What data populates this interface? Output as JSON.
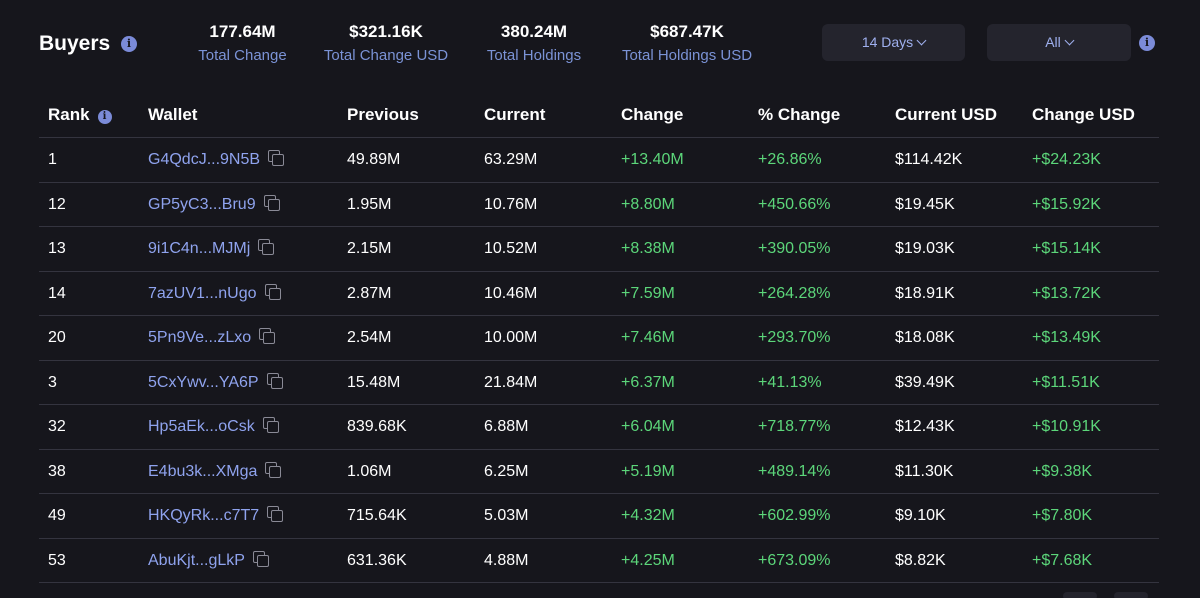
{
  "header": {
    "title": "Buyers",
    "stats": [
      {
        "value": "177.64M",
        "label": "Total Change"
      },
      {
        "value": "$321.16K",
        "label": "Total Change USD"
      },
      {
        "value": "380.24M",
        "label": "Total Holdings"
      },
      {
        "value": "$687.47K",
        "label": "Total Holdings USD"
      }
    ],
    "filters": {
      "days": "14 Days",
      "scope": "All"
    },
    "info_glyph": "i"
  },
  "table": {
    "columns": [
      "Rank",
      "Wallet",
      "Previous",
      "Current",
      "Change",
      "% Change",
      "Current USD",
      "Change USD"
    ],
    "rows": [
      {
        "rank": "1",
        "wallet": "G4QdcJ...9N5B",
        "previous": "49.89M",
        "current": "63.29M",
        "change": "+13.40M",
        "pct_change": "+26.86%",
        "current_usd": "$114.42K",
        "change_usd": "+$24.23K"
      },
      {
        "rank": "12",
        "wallet": "GP5yC3...Bru9",
        "previous": "1.95M",
        "current": "10.76M",
        "change": "+8.80M",
        "pct_change": "+450.66%",
        "current_usd": "$19.45K",
        "change_usd": "+$15.92K"
      },
      {
        "rank": "13",
        "wallet": "9i1C4n...MJMj",
        "previous": "2.15M",
        "current": "10.52M",
        "change": "+8.38M",
        "pct_change": "+390.05%",
        "current_usd": "$19.03K",
        "change_usd": "+$15.14K"
      },
      {
        "rank": "14",
        "wallet": "7azUV1...nUgo",
        "previous": "2.87M",
        "current": "10.46M",
        "change": "+7.59M",
        "pct_change": "+264.28%",
        "current_usd": "$18.91K",
        "change_usd": "+$13.72K"
      },
      {
        "rank": "20",
        "wallet": "5Pn9Ve...zLxo",
        "previous": "2.54M",
        "current": "10.00M",
        "change": "+7.46M",
        "pct_change": "+293.70%",
        "current_usd": "$18.08K",
        "change_usd": "+$13.49K"
      },
      {
        "rank": "3",
        "wallet": "5CxYwv...YA6P",
        "previous": "15.48M",
        "current": "21.84M",
        "change": "+6.37M",
        "pct_change": "+41.13%",
        "current_usd": "$39.49K",
        "change_usd": "+$11.51K"
      },
      {
        "rank": "32",
        "wallet": "Hp5aEk...oCsk",
        "previous": "839.68K",
        "current": "6.88M",
        "change": "+6.04M",
        "pct_change": "+718.77%",
        "current_usd": "$12.43K",
        "change_usd": "+$10.91K"
      },
      {
        "rank": "38",
        "wallet": "E4bu3k...XMga",
        "previous": "1.06M",
        "current": "6.25M",
        "change": "+5.19M",
        "pct_change": "+489.14%",
        "current_usd": "$11.30K",
        "change_usd": "+$9.38K"
      },
      {
        "rank": "49",
        "wallet": "HKQyRk...c7T7",
        "previous": "715.64K",
        "current": "5.03M",
        "change": "+4.32M",
        "pct_change": "+602.99%",
        "current_usd": "$9.10K",
        "change_usd": "+$7.80K"
      },
      {
        "rank": "53",
        "wallet": "AbuKjt...gLkP",
        "previous": "631.36K",
        "current": "4.88M",
        "change": "+4.25M",
        "pct_change": "+673.09%",
        "current_usd": "$8.82K",
        "change_usd": "+$7.68K"
      }
    ]
  },
  "icons": {
    "info": "info-icon",
    "copy": "copy-icon",
    "dropdown": "chevron-down-icon"
  },
  "colors": {
    "background": "#16161c",
    "accent_blue": "#8fa3ee",
    "positive_green": "#5cd67a",
    "button_bg": "#24242d",
    "divider": "#34343f"
  }
}
